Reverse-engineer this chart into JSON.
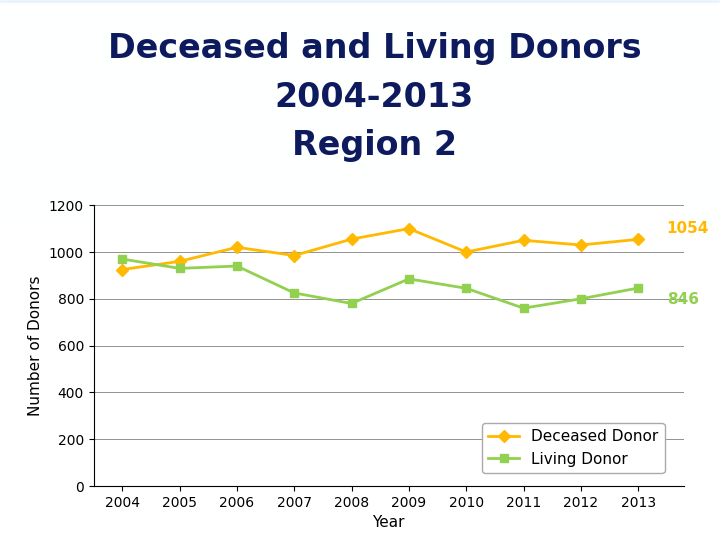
{
  "title_line1": "Deceased and Living Donors",
  "title_line2": "2004-2013",
  "title_line3": "Region 2",
  "title_color": "#0d1a5e",
  "years": [
    2004,
    2005,
    2006,
    2007,
    2008,
    2009,
    2010,
    2011,
    2012,
    2013
  ],
  "deceased_donor": [
    925,
    960,
    1020,
    985,
    1055,
    1100,
    1000,
    1050,
    1030,
    1054
  ],
  "living_donor": [
    970,
    930,
    940,
    825,
    780,
    885,
    845,
    760,
    800,
    846
  ],
  "deceased_color": "#FFB900",
  "living_color": "#92D050",
  "deceased_label": "Deceased Donor",
  "living_label": "Living Donor",
  "xlabel": "Year",
  "ylabel": "Number of Donors",
  "ylim": [
    0,
    1200
  ],
  "yticks": [
    0,
    200,
    400,
    600,
    800,
    1000,
    1200
  ],
  "last_deceased_label": "1054",
  "last_living_label": "846",
  "title_fontsize": 24,
  "axis_label_fontsize": 11,
  "tick_fontsize": 10,
  "legend_fontsize": 11,
  "annotation_fontsize": 11
}
